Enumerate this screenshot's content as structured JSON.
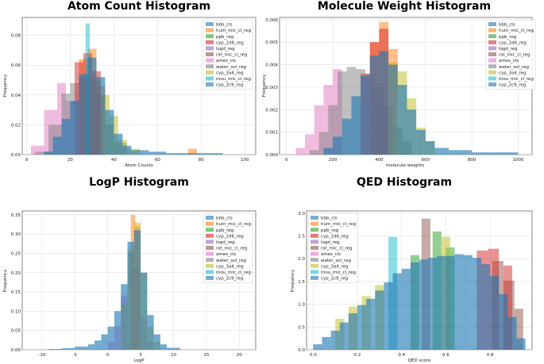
{
  "legend_labels": [
    "bbb_cls",
    "hum_mic_cl_reg",
    "ppb_reg",
    "cyp_2d6_reg",
    "logd_reg",
    "rat_mic_cl_reg",
    "ames_cls",
    "water_sol_reg",
    "cyp_3a4_reg",
    "mou_mic_cl_reg",
    "cyp_2c9_reg"
  ],
  "series_colors": [
    "#1f77b4",
    "#ff7f0e",
    "#2ca02c",
    "#d62728",
    "#9467bd",
    "#8c564b",
    "#e377c2",
    "#7f7f7f",
    "#bcbd22",
    "#17becf",
    "#1f77b4"
  ],
  "chart_data": [
    {
      "type": "bar",
      "title": "Atom Count Histogram",
      "xlabel": "Atom Counts",
      "ylabel": "Frequency",
      "xlim": [
        -2,
        105
      ],
      "ylim": [
        0,
        0.092
      ],
      "xticks": [
        0,
        20,
        40,
        60,
        80,
        100
      ],
      "yticks": [
        0.0,
        0.02,
        0.04,
        0.06,
        0.08
      ],
      "ytick_labels": [
        "0.00",
        "0.02",
        "0.04",
        "0.06",
        "0.08"
      ],
      "legend": "top-right",
      "grid": true,
      "series": [
        {
          "name": "ames_cls",
          "bins": [
            [
              2,
              8,
              0.006
            ],
            [
              8,
              14,
              0.03
            ],
            [
              14,
              18,
              0.048
            ],
            [
              18,
              22,
              0.036
            ]
          ]
        },
        {
          "name": "water_sol_reg",
          "bins": [
            [
              4,
              10,
              0.002
            ],
            [
              10,
              16,
              0.02
            ],
            [
              16,
              20,
              0.041
            ],
            [
              20,
              24,
              0.048
            ],
            [
              24,
              28,
              0.051
            ],
            [
              28,
              32,
              0.05
            ],
            [
              32,
              36,
              0.04
            ],
            [
              36,
              40,
              0.02
            ],
            [
              40,
              46,
              0.008
            ]
          ]
        },
        {
          "name": "cyp_3a4_reg",
          "bins": [
            [
              26,
              30,
              0.053
            ],
            [
              30,
              34,
              0.05
            ],
            [
              34,
              38,
              0.04
            ],
            [
              38,
              42,
              0.026
            ],
            [
              42,
              46,
              0.01
            ],
            [
              46,
              52,
              0.004
            ]
          ]
        },
        {
          "name": "hum_mic_cl_reg",
          "bins": [
            [
              24,
              28,
              0.064
            ],
            [
              28,
              32,
              0.071
            ],
            [
              32,
              36,
              0.046
            ],
            [
              74,
              78,
              0.004
            ]
          ]
        },
        {
          "name": "cyp_2d6_reg",
          "bins": [
            [
              22,
              26,
              0.062
            ],
            [
              26,
              30,
              0.068
            ],
            [
              30,
              34,
              0.056
            ]
          ]
        },
        {
          "name": "mou_mic_cl_reg",
          "bins": [
            [
              27,
              29,
              0.088
            ]
          ]
        },
        {
          "name": "bbb_cls",
          "bins": [
            [
              8,
              12,
              0.002
            ],
            [
              12,
              16,
              0.012
            ],
            [
              16,
              20,
              0.024
            ],
            [
              20,
              24,
              0.036
            ],
            [
              24,
              28,
              0.054
            ],
            [
              28,
              32,
              0.065
            ],
            [
              32,
              36,
              0.052
            ],
            [
              36,
              40,
              0.03
            ],
            [
              40,
              44,
              0.014
            ],
            [
              44,
              48,
              0.006
            ],
            [
              48,
              56,
              0.003
            ],
            [
              56,
              64,
              0.002
            ],
            [
              64,
              72,
              0.001
            ],
            [
              72,
              80,
              0.001
            ],
            [
              80,
              90,
              0.001
            ]
          ]
        }
      ]
    },
    {
      "type": "bar",
      "title": "Molecule Weight Histogram",
      "xlabel": "molecule weights",
      "ylabel": "Frequency",
      "xlim": [
        -30,
        1060
      ],
      "ylim": [
        0,
        0.0061
      ],
      "xticks": [
        0,
        200,
        400,
        600,
        800,
        1000
      ],
      "yticks": [
        0.0,
        0.001,
        0.002,
        0.003,
        0.004,
        0.005,
        0.006
      ],
      "ytick_labels": [
        "0.000",
        "0.001",
        "0.002",
        "0.003",
        "0.004",
        "0.005",
        "0.006"
      ],
      "legend": "top-right",
      "grid": true,
      "series": [
        {
          "name": "ames_cls",
          "bins": [
            [
              40,
              80,
              0.0003
            ],
            [
              80,
              120,
              0.0009
            ],
            [
              120,
              160,
              0.0022
            ],
            [
              160,
              200,
              0.0031
            ],
            [
              200,
              240,
              0.0038
            ]
          ]
        },
        {
          "name": "water_sol_reg",
          "bins": [
            [
              100,
              140,
              0.0002
            ],
            [
              140,
              180,
              0.001
            ],
            [
              180,
              220,
              0.0022
            ],
            [
              220,
              260,
              0.0037
            ],
            [
              260,
              300,
              0.0039
            ],
            [
              300,
              340,
              0.0038
            ],
            [
              340,
              380,
              0.0036
            ],
            [
              380,
              420,
              0.003
            ],
            [
              420,
              460,
              0.0022
            ],
            [
              460,
              500,
              0.0012
            ],
            [
              500,
              540,
              0.0006
            ]
          ]
        },
        {
          "name": "cyp_3a4_reg",
          "bins": [
            [
              440,
              480,
              0.0041
            ],
            [
              480,
              520,
              0.0037
            ],
            [
              520,
              560,
              0.0025
            ],
            [
              560,
              600,
              0.0012
            ],
            [
              600,
              640,
              0.0006
            ]
          ]
        },
        {
          "name": "hum_mic_cl_reg",
          "bins": [
            [
              360,
              400,
              0.005
            ],
            [
              400,
              440,
              0.0059
            ],
            [
              440,
              480,
              0.0047
            ]
          ]
        },
        {
          "name": "cyp_2d6_reg",
          "bins": [
            [
              320,
              360,
              0.0036
            ],
            [
              360,
              400,
              0.005
            ],
            [
              400,
              440,
              0.0056
            ]
          ]
        },
        {
          "name": "bbb_cls",
          "bins": [
            [
              160,
              200,
              0.0003
            ],
            [
              200,
              240,
              0.0008
            ],
            [
              240,
              280,
              0.0016
            ],
            [
              280,
              320,
              0.0026
            ],
            [
              320,
              360,
              0.0035
            ],
            [
              360,
              400,
              0.0044
            ],
            [
              400,
              440,
              0.0046
            ],
            [
              440,
              480,
              0.004
            ],
            [
              480,
              520,
              0.0031
            ],
            [
              520,
              560,
              0.002
            ],
            [
              560,
              600,
              0.0011
            ],
            [
              600,
              640,
              0.0006
            ],
            [
              640,
              700,
              0.0003
            ],
            [
              700,
              800,
              0.0002
            ],
            [
              800,
              900,
              0.0001
            ],
            [
              900,
              1000,
              0.0001
            ]
          ]
        }
      ]
    },
    {
      "type": "bar",
      "title": "LogP  Histogram",
      "xlabel": "LogP",
      "ylabel": "Frequency",
      "xlim": [
        -13,
        22.5
      ],
      "ylim": [
        0,
        0.36
      ],
      "xticks": [
        -10,
        -5,
        0,
        5,
        10,
        15,
        20
      ],
      "yticks": [
        0.0,
        0.05,
        0.1,
        0.15,
        0.2,
        0.25,
        0.3,
        0.35
      ],
      "ytick_labels": [
        "0.00",
        "0.05",
        "0.10",
        "0.15",
        "0.20",
        "0.25",
        "0.30",
        "0.35"
      ],
      "legend": "top-right",
      "grid": true,
      "series": [
        {
          "name": "ames_cls",
          "bins": [
            [
              0,
              1,
              0.02
            ],
            [
              1,
              2,
              0.06
            ],
            [
              2,
              3,
              0.14
            ],
            [
              3,
              4,
              0.25
            ],
            [
              4,
              5,
              0.21
            ],
            [
              5,
              6,
              0.08
            ],
            [
              6,
              7,
              0.02
            ]
          ]
        },
        {
          "name": "cyp_3a4_reg",
          "bins": [
            [
              2,
              3,
              0.12
            ],
            [
              3,
              4,
              0.26
            ],
            [
              4,
              5,
              0.33
            ],
            [
              5,
              6,
              0.2
            ],
            [
              6,
              7,
              0.06
            ],
            [
              7,
              8,
              0.02
            ]
          ]
        },
        {
          "name": "hum_mic_cl_reg",
          "bins": [
            [
              3.5,
              4.2,
              0.35
            ],
            [
              4.2,
              4.9,
              0.32
            ]
          ]
        },
        {
          "name": "bbb_cls",
          "bins": [
            [
              -9,
              -7,
              0.002
            ],
            [
              -7,
              -5,
              0.004
            ],
            [
              -5,
              -3,
              0.008
            ],
            [
              -3,
              -2,
              0.014
            ],
            [
              -2,
              -1,
              0.024
            ],
            [
              -1,
              0,
              0.04
            ],
            [
              0,
              1,
              0.06
            ],
            [
              1,
              2,
              0.1
            ],
            [
              2,
              3,
              0.17
            ],
            [
              3,
              4,
              0.28
            ],
            [
              4,
              5,
              0.31
            ],
            [
              5,
              6,
              0.2
            ],
            [
              6,
              7,
              0.09
            ],
            [
              7,
              8,
              0.04
            ],
            [
              8,
              9,
              0.014
            ],
            [
              9,
              11,
              0.005
            ]
          ]
        }
      ]
    },
    {
      "type": "bar",
      "title": "QED  Histogram",
      "xlabel": "QED score",
      "ylabel": "Frequency",
      "xlim": [
        -0.03,
        0.99
      ],
      "ylim": [
        0,
        3.05
      ],
      "xticks": [
        0.0,
        0.2,
        0.4,
        0.6,
        0.8
      ],
      "yticks": [
        0.0,
        0.5,
        1.0,
        1.5,
        2.0,
        2.5,
        3.0
      ],
      "ytick_labels": [
        "0.0",
        "0.5",
        "1.0",
        "1.5",
        "2.0",
        "2.5",
        "3.0"
      ],
      "legend": "top-right",
      "grid": true,
      "series": [
        {
          "name": "mou_mic_cl_reg",
          "bins": [
            [
              0.34,
              0.38,
              2.48
            ]
          ]
        },
        {
          "name": "rat_mic_cl_reg",
          "bins": [
            [
              0.49,
              0.53,
              2.88
            ],
            [
              0.81,
              0.86,
              1.95
            ],
            [
              0.86,
              0.91,
              1.52
            ],
            [
              0.91,
              0.95,
              0.9
            ]
          ]
        },
        {
          "name": "ppb_reg",
          "bins": [
            [
              0.44,
              0.48,
              2.08
            ],
            [
              0.54,
              0.58,
              2.6
            ],
            [
              0.6,
              0.64,
              2.25
            ]
          ]
        },
        {
          "name": "cyp_2d6_reg",
          "bins": [
            [
              0.74,
              0.79,
              2.18
            ],
            [
              0.79,
              0.84,
              2.22
            ],
            [
              0.86,
              0.9,
              1.85
            ]
          ]
        },
        {
          "name": "cyp_3a4_reg",
          "bins": [
            [
              0.1,
              0.14,
              0.68
            ],
            [
              0.16,
              0.2,
              0.95
            ],
            [
              0.22,
              0.26,
              1.18
            ],
            [
              0.28,
              0.32,
              1.42
            ],
            [
              0.58,
              0.62,
              2.48
            ]
          ]
        },
        {
          "name": "bbb_cls",
          "bins": [
            [
              0.0,
              0.04,
              0.12
            ],
            [
              0.04,
              0.08,
              0.28
            ],
            [
              0.08,
              0.12,
              0.42
            ],
            [
              0.12,
              0.16,
              0.6
            ],
            [
              0.16,
              0.2,
              0.8
            ],
            [
              0.2,
              0.24,
              0.98
            ],
            [
              0.24,
              0.28,
              1.12
            ],
            [
              0.28,
              0.32,
              1.3
            ],
            [
              0.32,
              0.36,
              1.48
            ],
            [
              0.36,
              0.4,
              1.68
            ],
            [
              0.4,
              0.44,
              1.78
            ],
            [
              0.44,
              0.48,
              1.92
            ],
            [
              0.48,
              0.52,
              1.98
            ],
            [
              0.52,
              0.56,
              2.02
            ],
            [
              0.56,
              0.6,
              2.06
            ],
            [
              0.6,
              0.64,
              2.06
            ],
            [
              0.64,
              0.68,
              2.1
            ],
            [
              0.68,
              0.72,
              2.08
            ],
            [
              0.72,
              0.76,
              2.02
            ],
            [
              0.76,
              0.8,
              1.88
            ],
            [
              0.8,
              0.84,
              1.62
            ],
            [
              0.84,
              0.88,
              1.22
            ],
            [
              0.88,
              0.92,
              0.72
            ],
            [
              0.92,
              0.96,
              0.25
            ]
          ]
        }
      ]
    }
  ]
}
